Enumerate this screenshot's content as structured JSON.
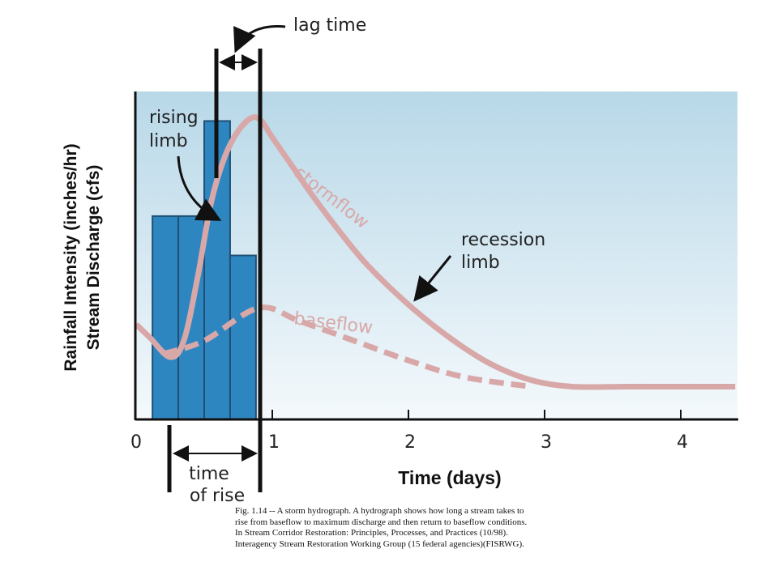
{
  "chart_data": {
    "type": "line",
    "y_axis_label_line1": "Rainfall Intensity (inches/hr)",
    "y_axis_label_line2": "Stream Discharge (cfs)",
    "x_axis_label": "Time (days)",
    "x_ticks": [
      "0",
      "1",
      "2",
      "3",
      "4"
    ],
    "x_range": [
      0,
      4.4
    ],
    "rainfall_bars": [
      {
        "start": 0.12,
        "end": 0.31,
        "value": 0.62
      },
      {
        "start": 0.31,
        "end": 0.5,
        "value": 0.62
      },
      {
        "start": 0.5,
        "end": 0.69,
        "value": 0.91
      },
      {
        "start": 0.69,
        "end": 0.88,
        "value": 0.5
      }
    ],
    "series": [
      {
        "name": "stormflow",
        "color": "#d8a8a8",
        "x": [
          0,
          0.1,
          0.25,
          0.35,
          0.45,
          0.55,
          0.65,
          0.75,
          0.85,
          0.92,
          1.0,
          1.15,
          1.3,
          1.5,
          1.7,
          2.0,
          2.3,
          2.6,
          2.9,
          3.2,
          3.6,
          4.0,
          4.4
        ],
        "y": [
          0.29,
          0.25,
          0.19,
          0.24,
          0.43,
          0.66,
          0.8,
          0.88,
          0.92,
          0.91,
          0.86,
          0.77,
          0.68,
          0.57,
          0.47,
          0.35,
          0.25,
          0.17,
          0.12,
          0.1,
          0.1,
          0.1,
          0.1
        ]
      },
      {
        "name": "baseflow",
        "color": "#d8a8a8",
        "dashed": true,
        "x": [
          0.2,
          0.5,
          0.9,
          1.2,
          1.6,
          2.0,
          2.4,
          2.9
        ],
        "y": [
          0.2,
          0.24,
          0.34,
          0.3,
          0.24,
          0.18,
          0.13,
          0.1
        ]
      }
    ],
    "annotations": {
      "lag_time": "lag time",
      "rising_limb_1": "rising",
      "rising_limb_2": "limb",
      "stormflow": "stormflow",
      "recession_1": "recession",
      "recession_2": "limb",
      "baseflow": "baseflow",
      "time_of_rise_1": "time",
      "time_of_rise_2": "of rise"
    }
  },
  "caption": [
    "Fig. 1.14 -- A storm hydrograph.  A hydrograph shows how long a stream takes to",
    "rise from baseflow to maximum discharge and then return to baseflow conditions.",
    "In Stream Corridor Restoration:  Principles, Processes, and Practices (10/98).",
    "Interagency Stream Restoration Working Group (15 federal agencies)(FISRWG)."
  ],
  "colors": {
    "background_top": "#b8d8e8",
    "background_bottom": "#f4f9fc",
    "bar_fill": "#2e86c1",
    "bar_stroke": "#1f4f73",
    "curve": "#d8a8a8",
    "axis": "#111111"
  }
}
